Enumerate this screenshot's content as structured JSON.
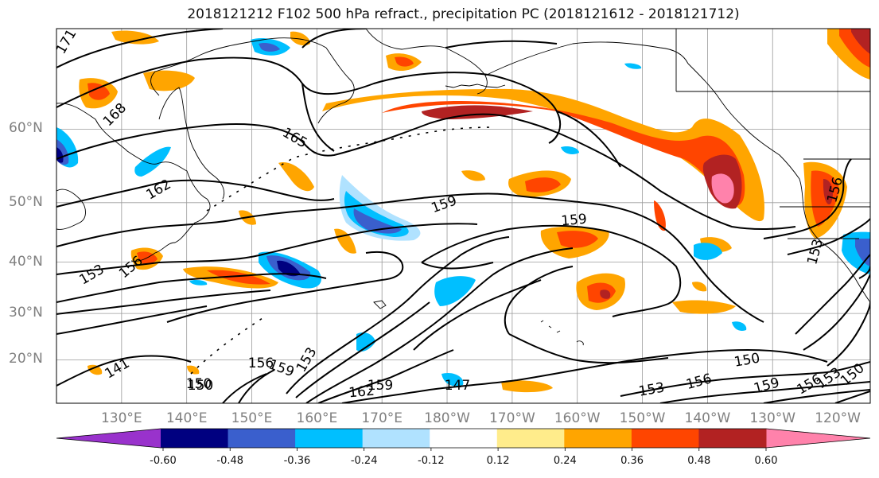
{
  "title": "2018121212 F102 500 hPa refract., precipitation PC (2018121612 - 2018121712)",
  "map": {
    "lat_labels": [
      {
        "text": "60°N",
        "lat": 60
      },
      {
        "text": "50°N",
        "lat": 50
      },
      {
        "text": "40°N",
        "lat": 40
      },
      {
        "text": "30°N",
        "lat": 30
      },
      {
        "text": "20°N",
        "lat": 20
      }
    ],
    "lon_labels": [
      {
        "text": "130°E",
        "lon": 130
      },
      {
        "text": "140°E",
        "lon": 140
      },
      {
        "text": "150°E",
        "lon": 150
      },
      {
        "text": "160°E",
        "lon": 160
      },
      {
        "text": "170°E",
        "lon": 170
      },
      {
        "text": "180°W",
        "lon": 180
      },
      {
        "text": "170°W",
        "lon": 190
      },
      {
        "text": "160°W",
        "lon": 200
      },
      {
        "text": "150°W",
        "lon": 210
      },
      {
        "text": "140°W",
        "lon": 220
      },
      {
        "text": "130°W",
        "lon": 230
      },
      {
        "text": "120°W",
        "lon": 240
      }
    ],
    "contour_labels": [
      "171",
      "168",
      "165",
      "162",
      "159",
      "159",
      "156",
      "153",
      "156",
      "153",
      "150",
      "156",
      "159",
      "153",
      "162",
      "159",
      "147",
      "141",
      "150",
      "153",
      "156",
      "150",
      "159",
      "156",
      "153",
      "150"
    ],
    "extent": {
      "lon_min": 120,
      "lon_max": 245,
      "lat_min": 10,
      "lat_max": 70
    }
  },
  "colorbar": {
    "colors": [
      "#9932cc",
      "#000080",
      "#3a5fcd",
      "#00bfff",
      "#b0e2ff",
      "#ffffff",
      "#ffec8b",
      "#ffa500",
      "#ff4500",
      "#b22222",
      "#ff82ab"
    ],
    "tick_labels": [
      "-0.60",
      "-0.48",
      "-0.36",
      "-0.24",
      "-0.12",
      "0.12",
      "0.24",
      "0.36",
      "0.48",
      "0.60"
    ]
  }
}
